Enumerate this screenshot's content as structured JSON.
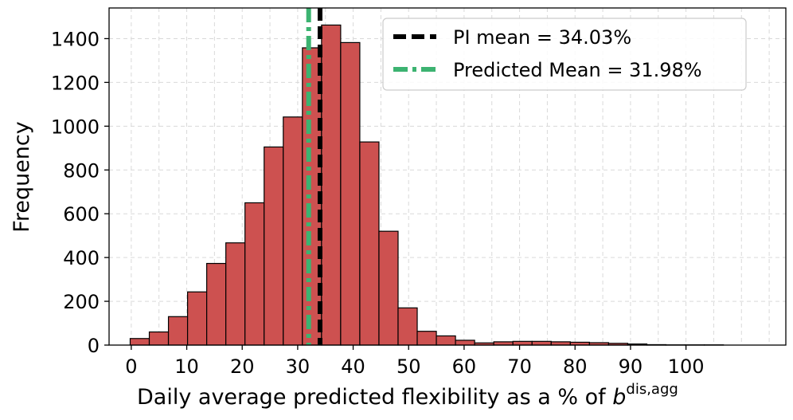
{
  "chart_data": {
    "type": "bar",
    "title": "",
    "xlabel": "Daily average predicted flexibility as a % of ",
    "xlabel_symbol": "b",
    "xlabel_superscript": "dis,agg",
    "ylabel": "Frequency",
    "xlim": [
      -4,
      118
    ],
    "ylim": [
      0,
      1540
    ],
    "grid": true,
    "bin_width": 3.45,
    "bin_start": -0.2,
    "values": [
      30,
      60,
      130,
      243,
      373,
      467,
      650,
      905,
      1042,
      1358,
      1462,
      1382,
      928,
      520,
      170,
      63,
      42,
      22,
      10,
      15,
      17,
      17,
      15,
      13,
      11,
      8,
      5,
      2,
      1,
      1,
      1
    ],
    "bar_color": "#cd5150",
    "edge_color": "#000000",
    "xticks": [
      0,
      10,
      20,
      30,
      40,
      50,
      60,
      70,
      80,
      90,
      100
    ],
    "xtick_labels": [
      "0",
      "10",
      "20",
      "30",
      "40",
      "50",
      "60",
      "70",
      "80",
      "90",
      "100"
    ],
    "yticks": [
      0,
      200,
      400,
      600,
      800,
      1000,
      1200,
      1400
    ],
    "ytick_labels": [
      "0",
      "200",
      "400",
      "600",
      "800",
      "1000",
      "1200",
      "1400"
    ],
    "vlines": [
      {
        "name": "PI mean",
        "value": 34.03,
        "color": "#000000",
        "style": "dashed"
      },
      {
        "name": "Predicted Mean",
        "value": 31.98,
        "color": "#3cb371",
        "style": "dashdot"
      }
    ],
    "legend": {
      "placement": "top-right",
      "entries": [
        {
          "label": "PI mean = 34.03%",
          "color": "#000000",
          "style": "dashed"
        },
        {
          "label": "Predicted Mean = 31.98%",
          "color": "#3cb371",
          "style": "dashdot"
        }
      ]
    }
  }
}
